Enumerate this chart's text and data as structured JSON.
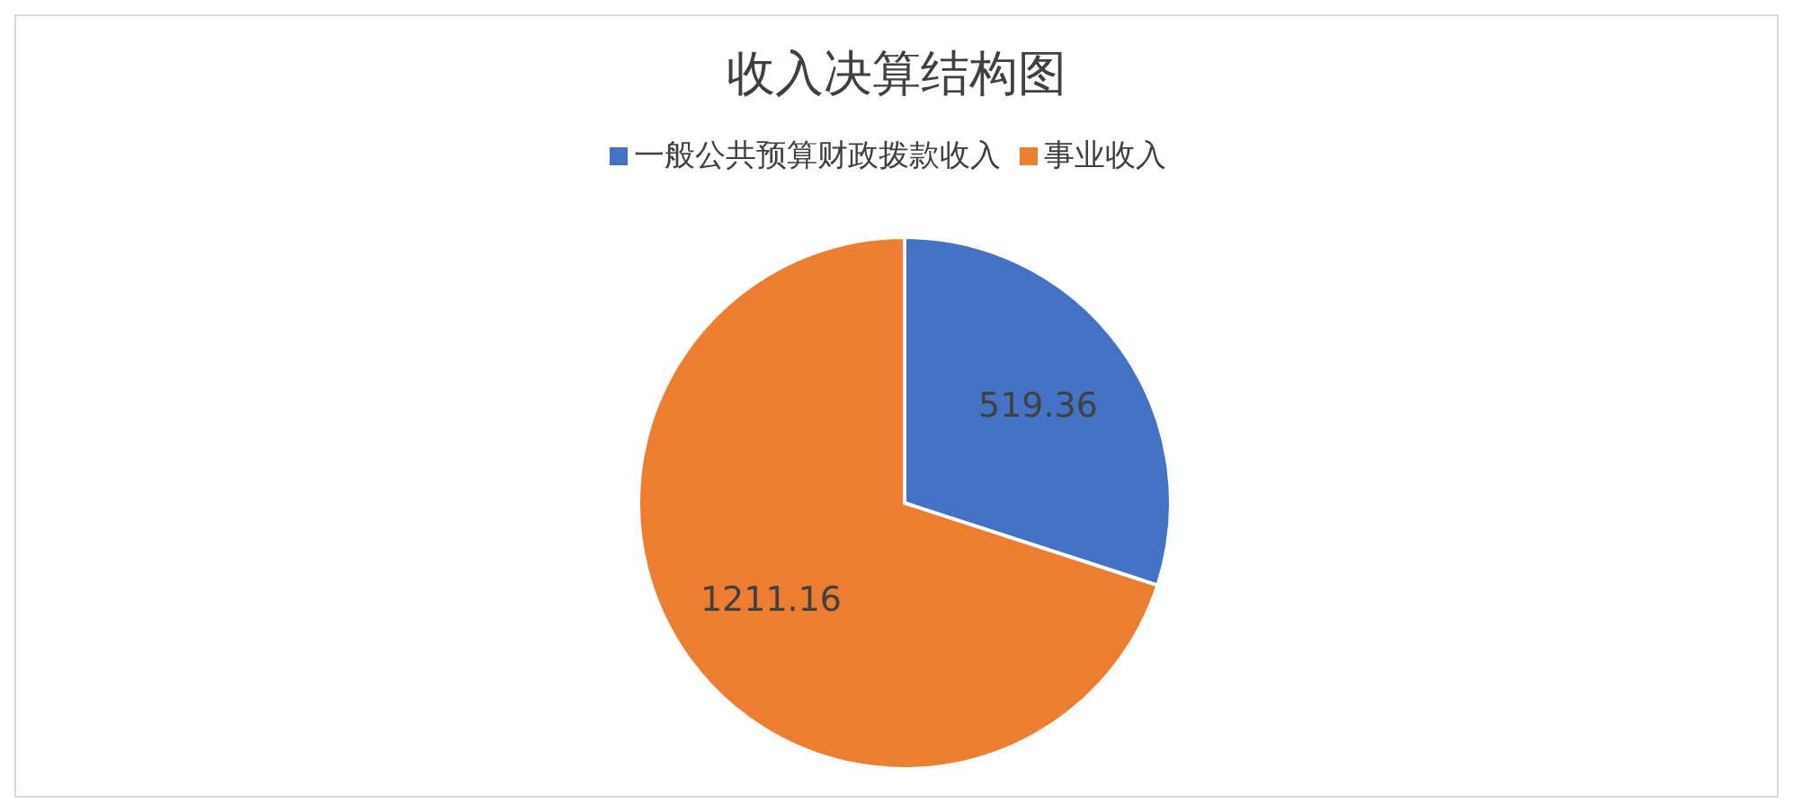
{
  "chart_data": {
    "type": "pie",
    "title": "收入决算结构图",
    "categories": [
      "一般公共预算财政拨款收入",
      "事业收入"
    ],
    "values": [
      519.36,
      1211.16
    ],
    "colors": [
      "#4472c4",
      "#ed7d31"
    ],
    "legend": "top",
    "data_labels": true
  }
}
